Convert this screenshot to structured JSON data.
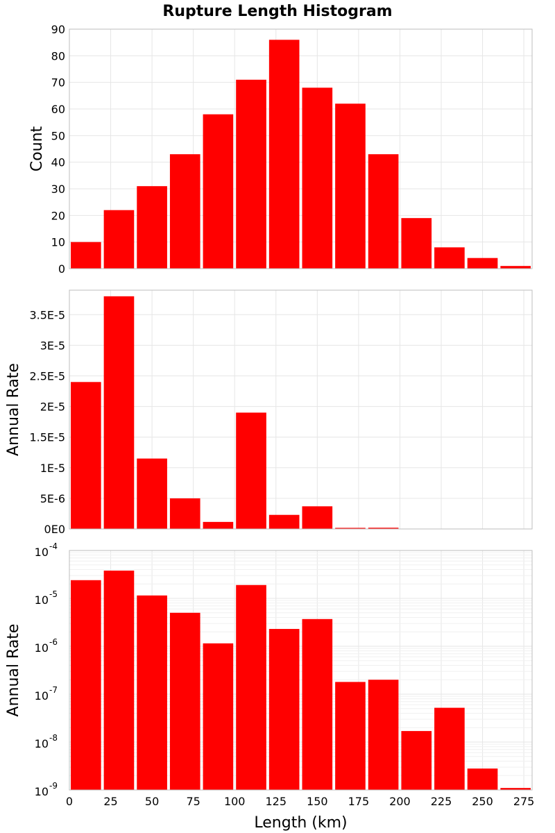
{
  "title": "Rupture Length Histogram",
  "colors": {
    "bar": "#ff0000",
    "frame": "#bdbdbd",
    "grid": "#e6e6e6",
    "background": "#ffffff"
  },
  "chart_data": [
    {
      "type": "bar",
      "name": "count-histogram",
      "ylabel": "Count",
      "xlim": [
        0,
        280
      ],
      "ylim": [
        0,
        90
      ],
      "yscale": "linear",
      "bin_width": 20,
      "bin_centers": [
        10,
        30,
        50,
        70,
        90,
        110,
        130,
        150,
        170,
        190,
        210,
        230,
        250,
        270
      ],
      "values": [
        10,
        22,
        31,
        43,
        58,
        71,
        86,
        68,
        62,
        43,
        19,
        8,
        4,
        1
      ],
      "yticks": [
        0,
        10,
        20,
        30,
        40,
        50,
        60,
        70,
        80,
        90
      ],
      "ytick_labels": [
        "0",
        "10",
        "20",
        "30",
        "40",
        "50",
        "60",
        "70",
        "80",
        "90"
      ]
    },
    {
      "type": "bar",
      "name": "rate-linear-histogram",
      "ylabel": "Annual Rate",
      "xlim": [
        0,
        280
      ],
      "ylim": [
        0,
        3.9e-05
      ],
      "yscale": "linear",
      "bin_width": 20,
      "bin_centers": [
        10,
        30,
        50,
        70,
        90,
        110,
        130,
        150,
        170,
        190,
        210,
        230,
        250,
        270
      ],
      "values": [
        2.4e-05,
        3.8e-05,
        1.15e-05,
        5e-06,
        1.15e-06,
        1.9e-05,
        2.3e-06,
        3.7e-06,
        1.8e-07,
        2e-07,
        1.7e-08,
        5.2e-08,
        2.8e-09,
        1.1e-09
      ],
      "yticks": [
        0,
        5e-06,
        1e-05,
        1.5e-05,
        2e-05,
        2.5e-05,
        3e-05,
        3.5e-05
      ],
      "ytick_labels": [
        "0E0",
        "5E-6",
        "1E-5",
        "1.5E-5",
        "2E-5",
        "2.5E-5",
        "3E-5",
        "3.5E-5"
      ]
    },
    {
      "type": "bar",
      "name": "rate-log-histogram",
      "ylabel": "Annual Rate",
      "xlabel": "Length (km)",
      "xlim": [
        0,
        280
      ],
      "ylim": [
        1e-09,
        0.0001
      ],
      "yscale": "log",
      "bin_width": 20,
      "bin_centers": [
        10,
        30,
        50,
        70,
        90,
        110,
        130,
        150,
        170,
        190,
        210,
        230,
        250,
        270
      ],
      "values": [
        2.4e-05,
        3.8e-05,
        1.15e-05,
        5e-06,
        1.15e-06,
        1.9e-05,
        2.3e-06,
        3.7e-06,
        1.8e-07,
        2e-07,
        1.7e-08,
        5.2e-08,
        2.8e-09,
        1.1e-09
      ],
      "ytick_exponents": [
        "-4",
        "-5",
        "-6",
        "-7",
        "-8",
        "-9"
      ],
      "ytick_base": "10",
      "xticks": [
        0,
        25,
        50,
        75,
        100,
        125,
        150,
        175,
        200,
        225,
        250,
        275
      ],
      "xtick_labels": [
        "0",
        "25",
        "50",
        "75",
        "100",
        "125",
        "150",
        "175",
        "200",
        "225",
        "250",
        "275"
      ]
    }
  ]
}
